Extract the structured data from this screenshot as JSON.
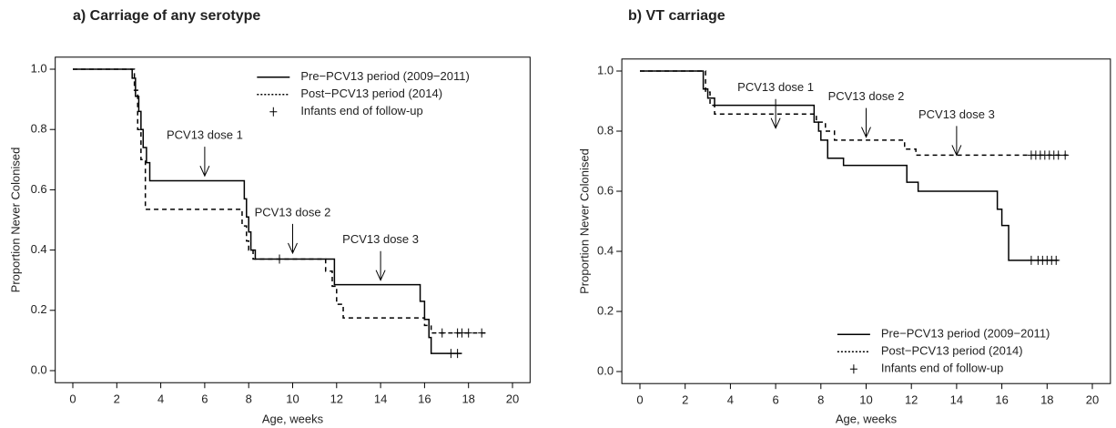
{
  "chart_data": [
    {
      "type": "line",
      "step": "post",
      "title": "a) Carriage of any serotype",
      "xlabel": "Age, weeks",
      "ylabel": "Proportion Never Colonised",
      "xlim": [
        0,
        20
      ],
      "ylim": [
        0,
        1
      ],
      "xticks": [
        0,
        2,
        4,
        6,
        8,
        10,
        12,
        14,
        16,
        18,
        20
      ],
      "yticks": [
        {
          "value": 0,
          "label": "0.0"
        },
        0.2,
        0.4,
        0.6,
        0.8,
        {
          "value": 1,
          "label": "1.0"
        }
      ],
      "legend": "upper right",
      "censor_label": "Infants end of follow-up",
      "series": [
        {
          "name": "Pre−PCV13 period (2009−2011)",
          "color": "#000000",
          "dash": "solid",
          "x": [
            0,
            2.7,
            2.85,
            3.0,
            3.1,
            3.2,
            3.35,
            3.5,
            7.8,
            7.9,
            8.0,
            8.1,
            8.3,
            11.9,
            15.8,
            16.0,
            16.2,
            16.3,
            17.7
          ],
          "values": [
            1,
            0.97,
            0.91,
            0.86,
            0.8,
            0.74,
            0.69,
            0.63,
            0.57,
            0.51,
            0.46,
            0.4,
            0.37,
            0.285,
            0.23,
            0.17,
            0.11,
            0.057,
            0.057
          ],
          "censored_x": [
            9.4,
            17.2,
            17.5
          ],
          "censored_values": [
            0.37,
            0.057,
            0.057
          ]
        },
        {
          "name": "Post−PCV13 period (2014)",
          "color": "#000000",
          "dash": "dashed",
          "x": [
            0,
            2.8,
            2.95,
            3.1,
            3.3,
            7.7,
            7.9,
            8.0,
            8.2,
            11.5,
            11.8,
            12.0,
            12.3,
            16.0,
            16.3,
            18.9
          ],
          "values": [
            1,
            0.93,
            0.8,
            0.7,
            0.535,
            0.48,
            0.43,
            0.4,
            0.37,
            0.33,
            0.28,
            0.22,
            0.175,
            0.15,
            0.125,
            0.125
          ],
          "censored_x": [
            16.8,
            17.5,
            17.7,
            18.0,
            18.6
          ],
          "censored_values": [
            0.125,
            0.125,
            0.125,
            0.125,
            0.125
          ]
        }
      ],
      "annotations": [
        {
          "text": "PCV13 dose 1",
          "x": 6,
          "y": 0.646
        },
        {
          "text": "PCV13 dose 2",
          "x": 10,
          "y": 0.39
        },
        {
          "text": "PCV13 dose 3",
          "x": 14,
          "y": 0.3
        }
      ]
    },
    {
      "type": "line",
      "step": "post",
      "title": "b) VT carriage",
      "xlabel": "Age, weeks",
      "ylabel": "Proportion Never Colonised",
      "xlim": [
        0,
        20
      ],
      "ylim": [
        0,
        1
      ],
      "xticks": [
        0,
        2,
        4,
        6,
        8,
        10,
        12,
        14,
        16,
        18,
        20
      ],
      "yticks": [
        {
          "value": 0,
          "label": "0.0"
        },
        0.2,
        0.4,
        0.6,
        0.8,
        {
          "value": 1,
          "label": "1.0"
        }
      ],
      "legend": "lower right",
      "censor_label": "Infants end of follow-up",
      "series": [
        {
          "name": "Pre−PCV13 period (2009−2011)",
          "color": "#000000",
          "dash": "solid",
          "x": [
            0,
            2.8,
            3.0,
            3.3,
            7.7,
            7.9,
            8.0,
            8.3,
            9.0,
            11.8,
            12.3,
            15.8,
            16.0,
            16.3,
            18.5
          ],
          "values": [
            1,
            0.94,
            0.91,
            0.886,
            0.83,
            0.8,
            0.77,
            0.71,
            0.686,
            0.63,
            0.6,
            0.54,
            0.486,
            0.37,
            0.37
          ],
          "censored_x": [
            17.3,
            17.6,
            17.8,
            18.0,
            18.2,
            18.4
          ],
          "censored_values": [
            0.37,
            0.37,
            0.37,
            0.37,
            0.37,
            0.37
          ]
        },
        {
          "name": "Post−PCV13 period (2014)",
          "color": "#000000",
          "dash": "dashed",
          "x": [
            0,
            2.9,
            3.1,
            3.3,
            7.8,
            8.2,
            8.6,
            11.7,
            12.2,
            18.9
          ],
          "values": [
            1,
            0.93,
            0.886,
            0.857,
            0.83,
            0.8,
            0.77,
            0.74,
            0.72,
            0.72
          ],
          "censored_x": [
            17.3,
            17.5,
            17.7,
            17.9,
            18.1,
            18.3,
            18.5,
            18.8
          ],
          "censored_values": [
            0.72,
            0.72,
            0.72,
            0.72,
            0.72,
            0.72,
            0.72,
            0.72
          ]
        }
      ],
      "annotations": [
        {
          "text": "PCV13 dose 1",
          "x": 6,
          "y": 0.81
        },
        {
          "text": "PCV13 dose 2",
          "x": 10,
          "y": 0.78
        },
        {
          "text": "PCV13 dose 3",
          "x": 14,
          "y": 0.72
        }
      ]
    }
  ]
}
